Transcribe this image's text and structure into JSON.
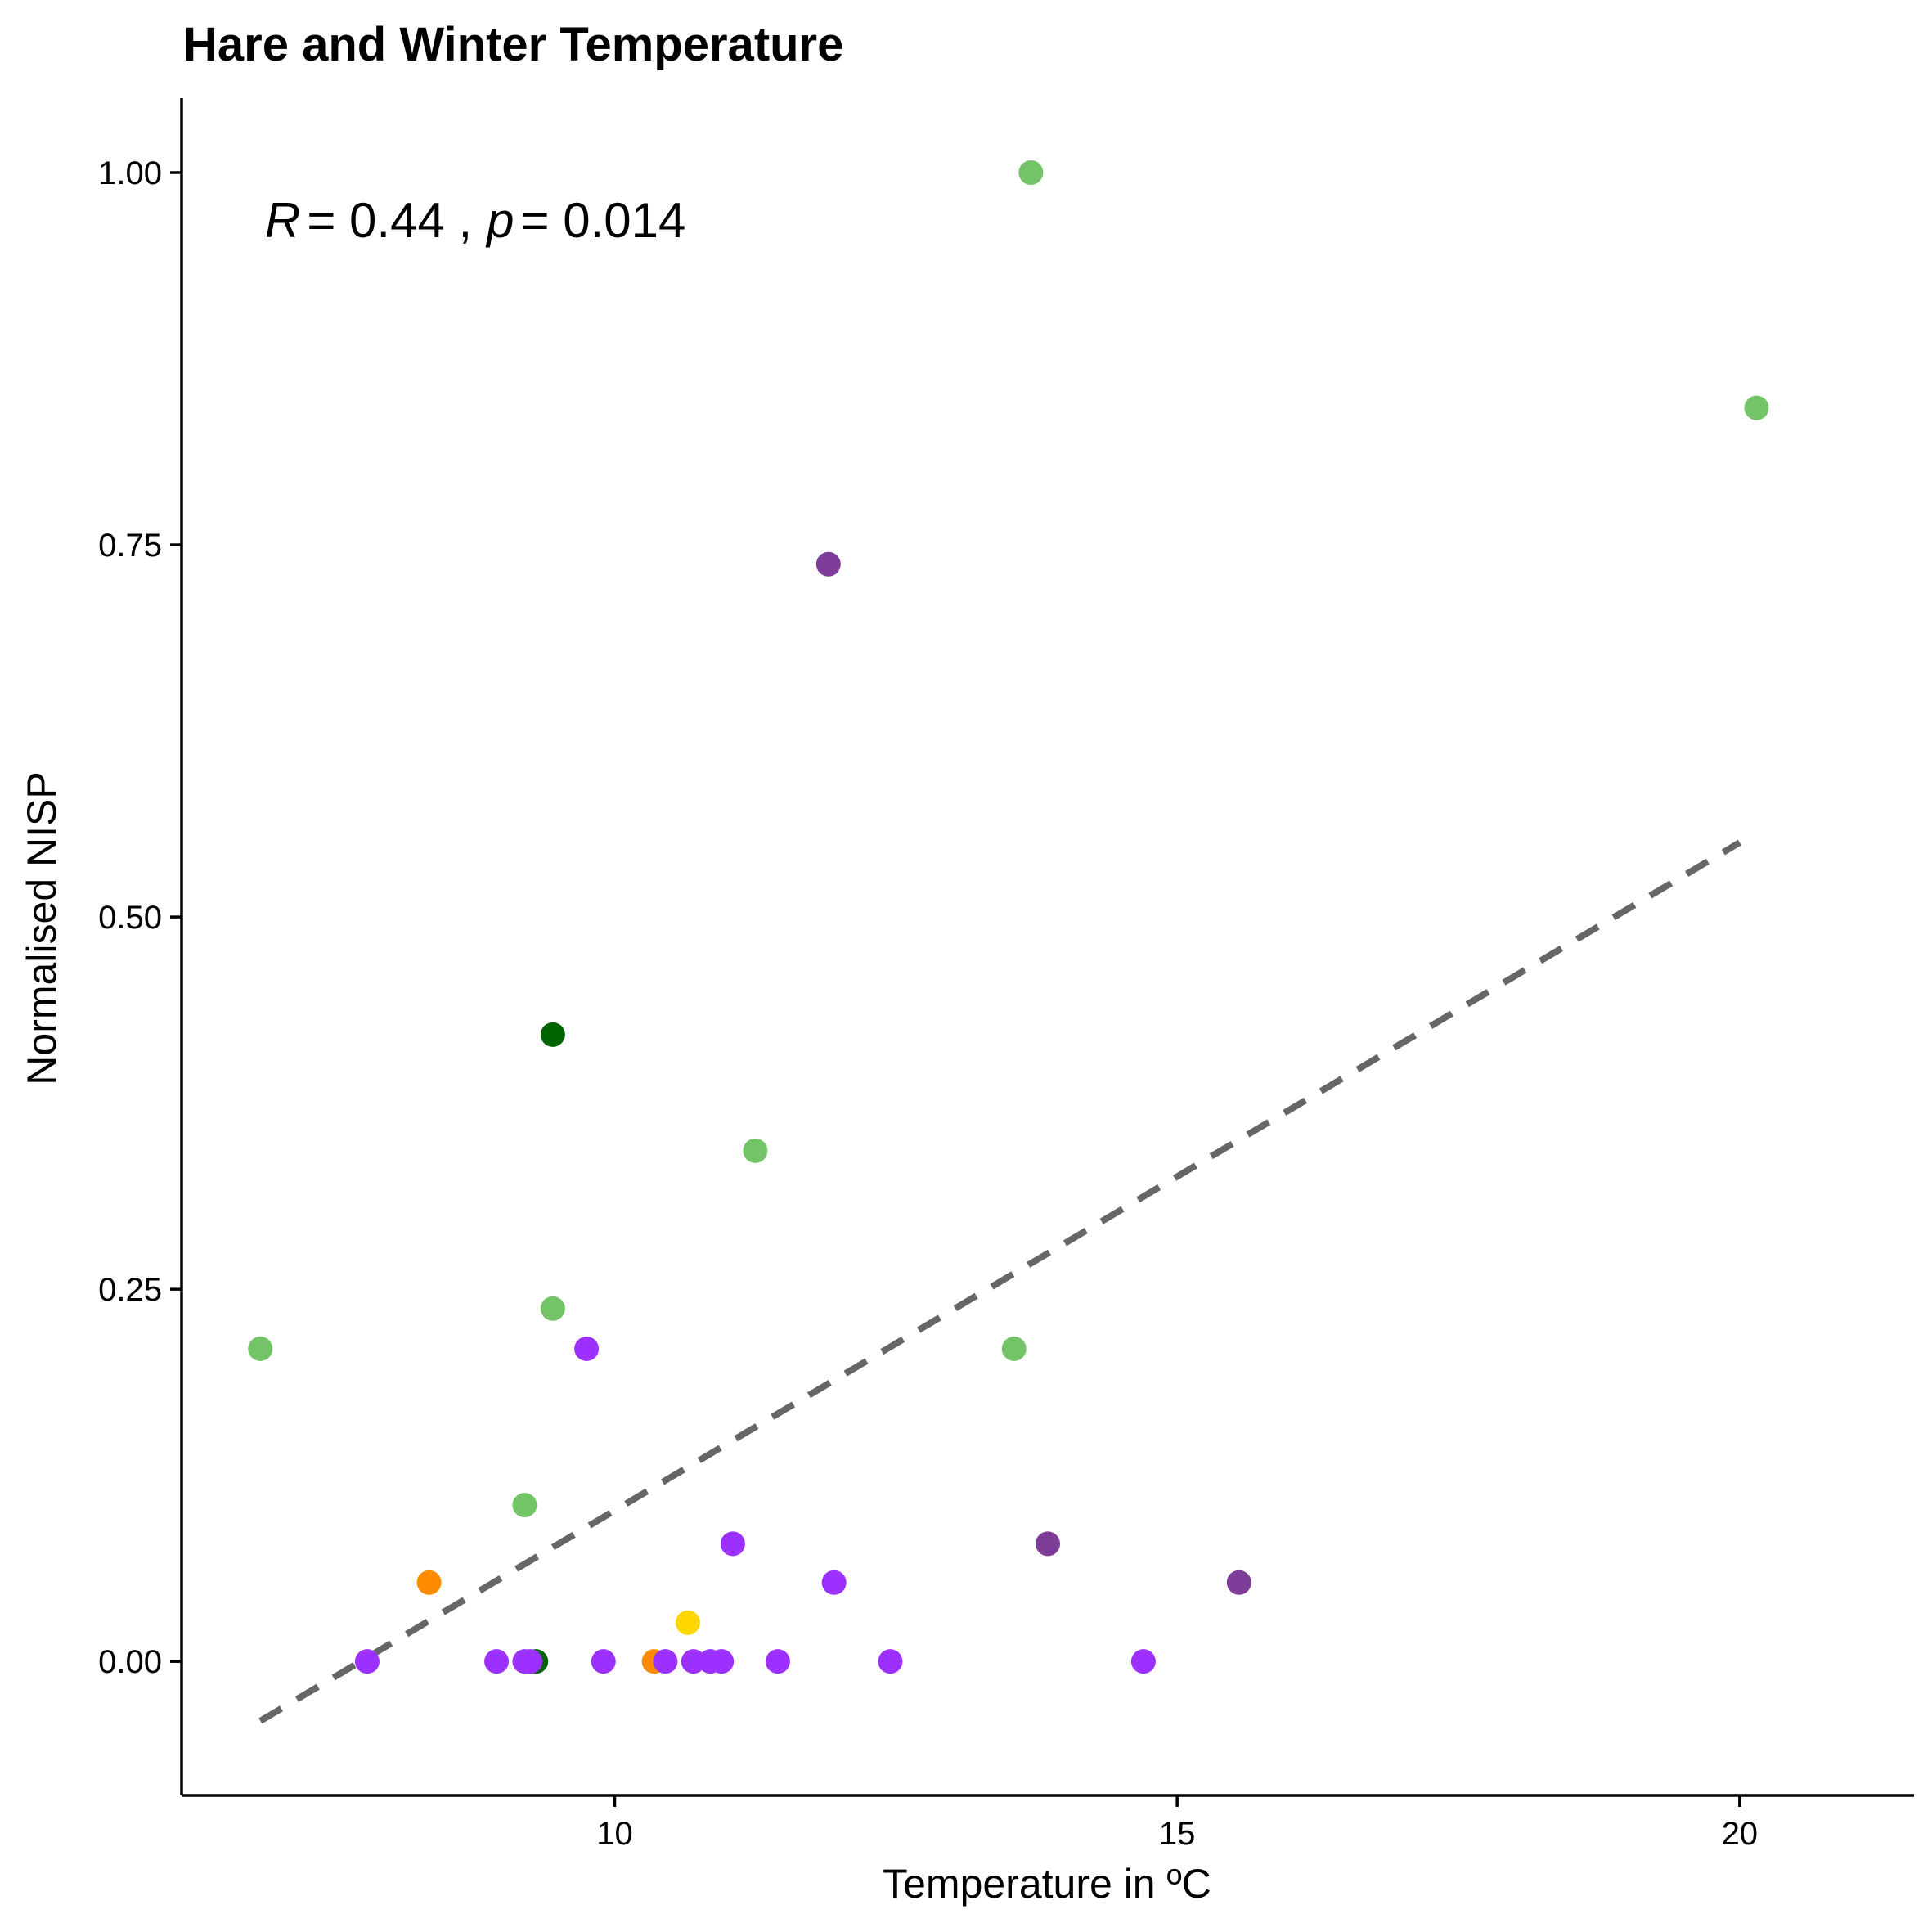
{
  "chart_data": {
    "type": "scatter",
    "title": "Hare and Winter Temperature",
    "xlabel": "Temperature in ºC",
    "ylabel": "Normalised NISP",
    "xlim": [
      6.15,
      21.55
    ],
    "ylim": [
      -0.09,
      1.05
    ],
    "x_ticks": [
      10,
      15,
      20
    ],
    "x_tick_labels": [
      "10",
      "15",
      "20"
    ],
    "y_ticks": [
      0,
      0.25,
      0.5,
      0.75,
      1.0
    ],
    "y_tick_labels": [
      "0.00",
      "0.25",
      "0.50",
      "0.75",
      "1.00"
    ],
    "grid": false,
    "legend": "none",
    "annotation": {
      "r_symbol": "R",
      "r_value": "= 0.44 ,",
      "p_symbol": "p",
      "p_value": "= 0.014"
    },
    "trend_line": {
      "style": "dashed",
      "color": "#666666",
      "x": [
        6.85,
        20.0
      ],
      "y": [
        -0.04,
        0.55
      ]
    },
    "series": [
      {
        "color": "#72c466",
        "points": [
          [
            6.85,
            0.21
          ],
          [
            9.2,
            0.105
          ],
          [
            9.45,
            0.237
          ],
          [
            11.25,
            0.343
          ],
          [
            13.55,
            0.21
          ],
          [
            13.7,
            1.0
          ],
          [
            20.15,
            0.842
          ]
        ]
      },
      {
        "color": "#006400",
        "points": [
          [
            9.45,
            0.421
          ],
          [
            9.3,
            0.0
          ]
        ]
      },
      {
        "color": "#ff8c00",
        "points": [
          [
            8.35,
            0.053
          ],
          [
            10.35,
            0.0
          ]
        ]
      },
      {
        "color": "#ffd700",
        "points": [
          [
            10.65,
            0.026
          ]
        ]
      },
      {
        "color": "#9b30ff",
        "points": [
          [
            7.8,
            0.0
          ],
          [
            8.95,
            0.0
          ],
          [
            9.2,
            0.0
          ],
          [
            9.25,
            0.0
          ],
          [
            9.75,
            0.21
          ],
          [
            9.9,
            0.0
          ],
          [
            10.45,
            0.0
          ],
          [
            10.7,
            0.0
          ],
          [
            10.85,
            0.0
          ],
          [
            10.95,
            0.0
          ],
          [
            11.05,
            0.079
          ],
          [
            11.45,
            0.0
          ],
          [
            11.95,
            0.053
          ],
          [
            12.45,
            0.0
          ],
          [
            14.7,
            0.0
          ]
        ]
      },
      {
        "color": "#7d3c98",
        "points": [
          [
            11.9,
            0.737
          ],
          [
            13.85,
            0.079
          ],
          [
            15.55,
            0.053
          ]
        ]
      }
    ]
  }
}
